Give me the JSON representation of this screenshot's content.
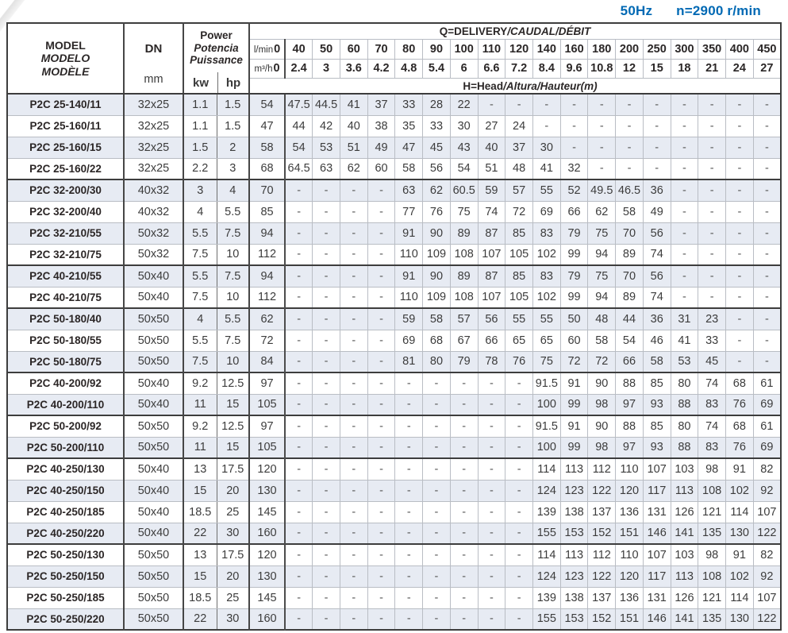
{
  "title_bar": {
    "frequency": "50Hz",
    "speed": "n=2900 r/min"
  },
  "table": {
    "header": {
      "model_lines": [
        "MODEL",
        "MODELO",
        "MODÈLE"
      ],
      "dn": "DN",
      "dn_unit": "mm",
      "power_lines": [
        "Power",
        "Potencia",
        "Puissance"
      ],
      "kw": "kw",
      "hp": "hp",
      "q_title_main": "Q=DELIVERY",
      "q_title_intl": "/CAUDAL/DÉBIT",
      "lmin_label": "l/min",
      "lmin_zero": "0",
      "m3h_label": "m³/h",
      "m3h_zero": "0",
      "lmin": [
        "40",
        "50",
        "60",
        "70",
        "80",
        "90",
        "100",
        "110",
        "120",
        "140",
        "160",
        "180",
        "200",
        "250",
        "300",
        "350",
        "400",
        "450"
      ],
      "m3h": [
        "2.4",
        "3",
        "3.6",
        "4.2",
        "4.8",
        "5.4",
        "6",
        "6.6",
        "7.2",
        "8.4",
        "9.6",
        "10.8",
        "12",
        "15",
        "18",
        "21",
        "24",
        "27"
      ],
      "h_title_main": "H=Head",
      "h_title_intl": "/Altura/Hauteur(m)"
    },
    "rows": [
      {
        "model": "P2C 25-140/11",
        "dn": "32x25",
        "kw": "1.1",
        "hp": "1.5",
        "group_start": false,
        "head": [
          "54",
          "47.5",
          "44.5",
          "41",
          "37",
          "33",
          "28",
          "22",
          "-",
          "-",
          "-",
          "-",
          "-",
          "-",
          "-",
          "-",
          "-",
          "-",
          "-"
        ]
      },
      {
        "model": "P2C 25-160/11",
        "dn": "32x25",
        "kw": "1.1",
        "hp": "1.5",
        "group_start": false,
        "head": [
          "47",
          "44",
          "42",
          "40",
          "38",
          "35",
          "33",
          "30",
          "27",
          "24",
          "-",
          "-",
          "-",
          "-",
          "-",
          "-",
          "-",
          "-",
          "-"
        ]
      },
      {
        "model": "P2C 25-160/15",
        "dn": "32x25",
        "kw": "1.5",
        "hp": "2",
        "group_start": false,
        "head": [
          "58",
          "54",
          "53",
          "51",
          "49",
          "47",
          "45",
          "43",
          "40",
          "37",
          "30",
          "-",
          "-",
          "-",
          "-",
          "-",
          "-",
          "-",
          "-"
        ]
      },
      {
        "model": "P2C 25-160/22",
        "dn": "32x25",
        "kw": "2.2",
        "hp": "3",
        "group_start": false,
        "head": [
          "68",
          "64.5",
          "63",
          "62",
          "60",
          "58",
          "56",
          "54",
          "51",
          "48",
          "41",
          "32",
          "-",
          "-",
          "-",
          "-",
          "-",
          "-",
          "-"
        ]
      },
      {
        "model": "P2C 32-200/30",
        "dn": "40x32",
        "kw": "3",
        "hp": "4",
        "group_start": true,
        "head": [
          "70",
          "-",
          "-",
          "-",
          "-",
          "63",
          "62",
          "60.5",
          "59",
          "57",
          "55",
          "52",
          "49.5",
          "46.5",
          "36",
          "-",
          "-",
          "-",
          "-"
        ]
      },
      {
        "model": "P2C 32-200/40",
        "dn": "40x32",
        "kw": "4",
        "hp": "5.5",
        "group_start": false,
        "head": [
          "85",
          "-",
          "-",
          "-",
          "-",
          "77",
          "76",
          "75",
          "74",
          "72",
          "69",
          "66",
          "62",
          "58",
          "49",
          "-",
          "-",
          "-",
          "-"
        ]
      },
      {
        "model": "P2C 32-210/55",
        "dn": "50x32",
        "kw": "5.5",
        "hp": "7.5",
        "group_start": false,
        "head": [
          "94",
          "-",
          "-",
          "-",
          "-",
          "91",
          "90",
          "89",
          "87",
          "85",
          "83",
          "79",
          "75",
          "70",
          "56",
          "-",
          "-",
          "-",
          "-"
        ]
      },
      {
        "model": "P2C 32-210/75",
        "dn": "50x32",
        "kw": "7.5",
        "hp": "10",
        "group_start": false,
        "head": [
          "112",
          "-",
          "-",
          "-",
          "-",
          "110",
          "109",
          "108",
          "107",
          "105",
          "102",
          "99",
          "94",
          "89",
          "74",
          "-",
          "-",
          "-",
          "-"
        ]
      },
      {
        "model": "P2C 40-210/55",
        "dn": "50x40",
        "kw": "5.5",
        "hp": "7.5",
        "group_start": true,
        "head": [
          "94",
          "-",
          "-",
          "-",
          "-",
          "91",
          "90",
          "89",
          "87",
          "85",
          "83",
          "79",
          "75",
          "70",
          "56",
          "-",
          "-",
          "-",
          "-"
        ]
      },
      {
        "model": "P2C 40-210/75",
        "dn": "50x40",
        "kw": "7.5",
        "hp": "10",
        "group_start": false,
        "head": [
          "112",
          "-",
          "-",
          "-",
          "-",
          "110",
          "109",
          "108",
          "107",
          "105",
          "102",
          "99",
          "94",
          "89",
          "74",
          "-",
          "-",
          "-",
          "-"
        ]
      },
      {
        "model": "P2C 50-180/40",
        "dn": "50x50",
        "kw": "4",
        "hp": "5.5",
        "group_start": true,
        "head": [
          "62",
          "-",
          "-",
          "-",
          "-",
          "59",
          "58",
          "57",
          "56",
          "55",
          "55",
          "50",
          "48",
          "44",
          "36",
          "31",
          "23",
          "-",
          "-"
        ]
      },
      {
        "model": "P2C 50-180/55",
        "dn": "50x50",
        "kw": "5.5",
        "hp": "7.5",
        "group_start": false,
        "head": [
          "72",
          "-",
          "-",
          "-",
          "-",
          "69",
          "68",
          "67",
          "66",
          "65",
          "65",
          "60",
          "58",
          "54",
          "46",
          "41",
          "33",
          "-",
          "-"
        ]
      },
      {
        "model": "P2C 50-180/75",
        "dn": "50x50",
        "kw": "7.5",
        "hp": "10",
        "group_start": false,
        "head": [
          "84",
          "-",
          "-",
          "-",
          "-",
          "81",
          "80",
          "79",
          "78",
          "76",
          "75",
          "72",
          "72",
          "66",
          "58",
          "53",
          "45",
          "-",
          "-"
        ]
      },
      {
        "model": "P2C 40-200/92",
        "dn": "50x40",
        "kw": "9.2",
        "hp": "12.5",
        "group_start": true,
        "head": [
          "97",
          "-",
          "-",
          "-",
          "-",
          "-",
          "-",
          "-",
          "-",
          "-",
          "91.5",
          "91",
          "90",
          "88",
          "85",
          "80",
          "74",
          "68",
          "61"
        ]
      },
      {
        "model": "P2C 40-200/110",
        "dn": "50x40",
        "kw": "11",
        "hp": "15",
        "group_start": false,
        "head": [
          "105",
          "-",
          "-",
          "-",
          "-",
          "-",
          "-",
          "-",
          "-",
          "-",
          "100",
          "99",
          "98",
          "97",
          "93",
          "88",
          "83",
          "76",
          "69"
        ]
      },
      {
        "model": "P2C 50-200/92",
        "dn": "50x50",
        "kw": "9.2",
        "hp": "12.5",
        "group_start": true,
        "head": [
          "97",
          "-",
          "-",
          "-",
          "-",
          "-",
          "-",
          "-",
          "-",
          "-",
          "91.5",
          "91",
          "90",
          "88",
          "85",
          "80",
          "74",
          "68",
          "61"
        ]
      },
      {
        "model": "P2C 50-200/110",
        "dn": "50x50",
        "kw": "11",
        "hp": "15",
        "group_start": false,
        "head": [
          "105",
          "-",
          "-",
          "-",
          "-",
          "-",
          "-",
          "-",
          "-",
          "-",
          "100",
          "99",
          "98",
          "97",
          "93",
          "88",
          "83",
          "76",
          "69"
        ]
      },
      {
        "model": "P2C 40-250/130",
        "dn": "50x40",
        "kw": "13",
        "hp": "17.5",
        "group_start": true,
        "head": [
          "120",
          "-",
          "-",
          "-",
          "-",
          "-",
          "-",
          "-",
          "-",
          "-",
          "114",
          "113",
          "112",
          "110",
          "107",
          "103",
          "98",
          "91",
          "82"
        ]
      },
      {
        "model": "P2C 40-250/150",
        "dn": "50x40",
        "kw": "15",
        "hp": "20",
        "group_start": false,
        "head": [
          "130",
          "-",
          "-",
          "-",
          "-",
          "-",
          "-",
          "-",
          "-",
          "-",
          "124",
          "123",
          "122",
          "120",
          "117",
          "113",
          "108",
          "102",
          "92"
        ]
      },
      {
        "model": "P2C 40-250/185",
        "dn": "50x40",
        "kw": "18.5",
        "hp": "25",
        "group_start": false,
        "head": [
          "145",
          "-",
          "-",
          "-",
          "-",
          "-",
          "-",
          "-",
          "-",
          "-",
          "139",
          "138",
          "137",
          "136",
          "131",
          "126",
          "121",
          "114",
          "107"
        ]
      },
      {
        "model": "P2C 40-250/220",
        "dn": "50x40",
        "kw": "22",
        "hp": "30",
        "group_start": false,
        "head": [
          "160",
          "-",
          "-",
          "-",
          "-",
          "-",
          "-",
          "-",
          "-",
          "-",
          "155",
          "153",
          "152",
          "151",
          "146",
          "141",
          "135",
          "130",
          "122"
        ]
      },
      {
        "model": "P2C 50-250/130",
        "dn": "50x50",
        "kw": "13",
        "hp": "17.5",
        "group_start": true,
        "head": [
          "120",
          "-",
          "-",
          "-",
          "-",
          "-",
          "-",
          "-",
          "-",
          "-",
          "114",
          "113",
          "112",
          "110",
          "107",
          "103",
          "98",
          "91",
          "82"
        ]
      },
      {
        "model": "P2C 50-250/150",
        "dn": "50x50",
        "kw": "15",
        "hp": "20",
        "group_start": false,
        "head": [
          "130",
          "-",
          "-",
          "-",
          "-",
          "-",
          "-",
          "-",
          "-",
          "-",
          "124",
          "123",
          "122",
          "120",
          "117",
          "113",
          "108",
          "102",
          "92"
        ]
      },
      {
        "model": "P2C 50-250/185",
        "dn": "50x50",
        "kw": "18.5",
        "hp": "25",
        "group_start": false,
        "head": [
          "145",
          "-",
          "-",
          "-",
          "-",
          "-",
          "-",
          "-",
          "-",
          "-",
          "139",
          "138",
          "137",
          "136",
          "131",
          "126",
          "121",
          "114",
          "107"
        ]
      },
      {
        "model": "P2C 50-250/220",
        "dn": "50x50",
        "kw": "22",
        "hp": "30",
        "group_start": false,
        "head": [
          "160",
          "-",
          "-",
          "-",
          "-",
          "-",
          "-",
          "-",
          "-",
          "-",
          "155",
          "153",
          "152",
          "151",
          "146",
          "141",
          "135",
          "130",
          "122"
        ]
      }
    ]
  },
  "colors": {
    "accent_blue": "#0069b4",
    "row_shade": "#e7ebf3",
    "border_dark": "#3d3d3d",
    "border_light": "#b9bdc4"
  }
}
